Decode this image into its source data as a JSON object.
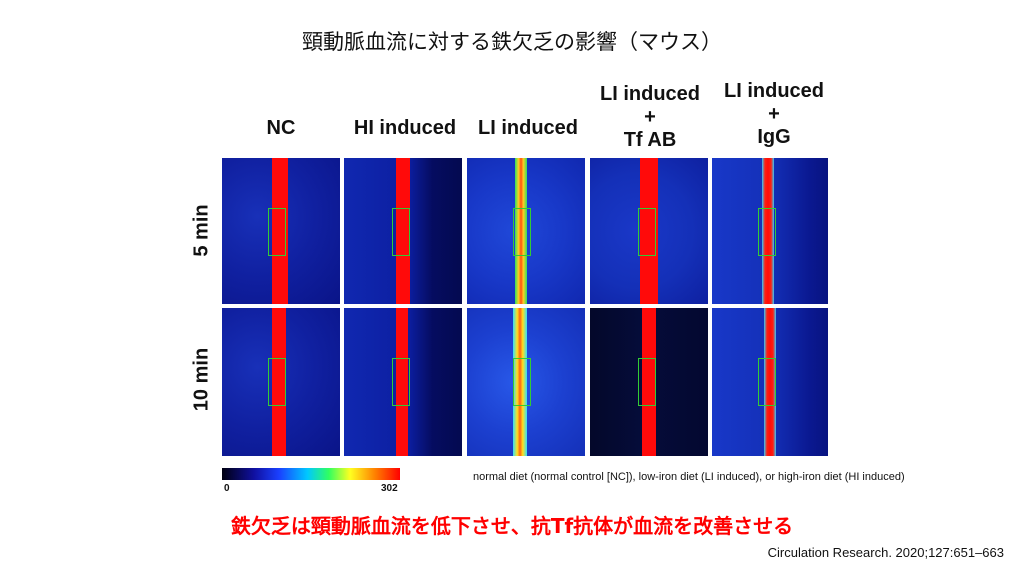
{
  "title": "頸動脈血流に対する鉄欠乏の影響（マウス）",
  "columns": [
    {
      "lines": [
        "NC"
      ]
    },
    {
      "lines": [
        "HI induced"
      ]
    },
    {
      "lines": [
        "LI induced"
      ]
    },
    {
      "lines": [
        "LI induced",
        "+",
        "Tf AB"
      ]
    },
    {
      "lines": [
        "LI induced",
        "+",
        "IgG"
      ]
    }
  ],
  "rows": [
    {
      "label": "5 min"
    },
    {
      "label": "10 min"
    }
  ],
  "colorbar": {
    "min": "0",
    "max": "302"
  },
  "legend_note": "normal diet (normal control [NC]), low-iron diet (LI induced), or high-iron diet (HI induced)",
  "conclusion": "鉄欠乏は頸動脈血流を低下させ、抗Tf抗体が血流を改善させる",
  "citation": "Circulation Research. 2020;127:651–663"
}
